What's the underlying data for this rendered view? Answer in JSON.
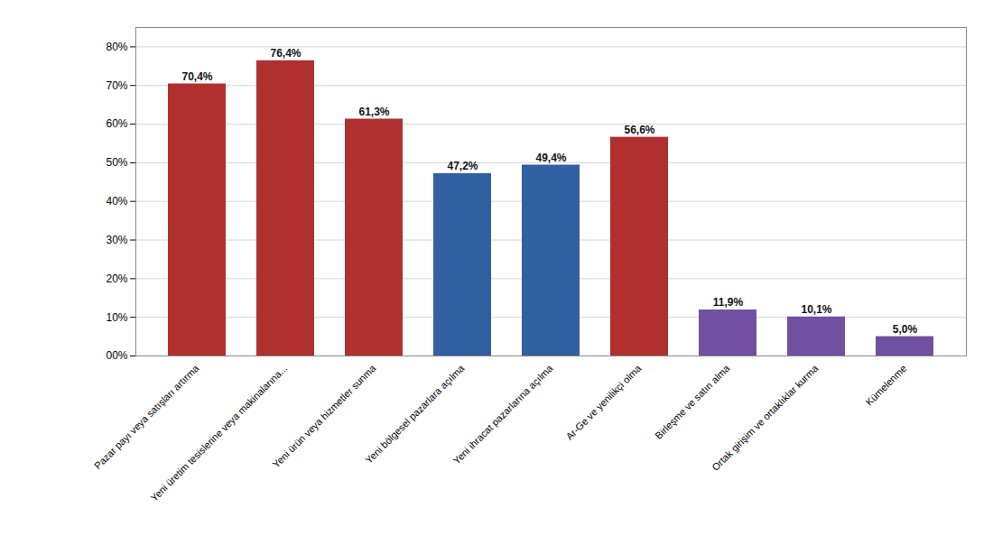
{
  "chart_data": {
    "type": "bar",
    "categories": [
      "Pazar payı veya satışları artırma",
      "Yeni üretim tesislerine veya makinalarına...",
      "Yeni ürün veya hizmetler sunma",
      "Yeni bölgesel pazarlara açılma",
      "Yeni ihracat pazarlarına açılma",
      "Ar-Ge ve yenilikçi olma",
      "Birleşme ve satın alma",
      "Ortak girişim ve ortaklıklar kurma",
      "Kümelenme"
    ],
    "values": [
      70.4,
      76.4,
      61.3,
      47.2,
      49.4,
      56.6,
      11.9,
      10.1,
      5.0
    ],
    "value_labels": [
      "70,4%",
      "76,4%",
      "61,3%",
      "47,2%",
      "49,4%",
      "56,6%",
      "11,9%",
      "10,1%",
      "5,0%"
    ],
    "colors": [
      "#b03030",
      "#b03030",
      "#b03030",
      "#3060a0",
      "#3060a0",
      "#b03030",
      "#7050a0",
      "#7050a0",
      "#7050a0"
    ],
    "ylim": [
      0,
      85
    ],
    "yticks": [
      {
        "value": 0,
        "label": "00%"
      },
      {
        "value": 10,
        "label": "10%"
      },
      {
        "value": 20,
        "label": "20%"
      },
      {
        "value": 30,
        "label": "30%"
      },
      {
        "value": 40,
        "label": "40%"
      },
      {
        "value": 50,
        "label": "50%"
      },
      {
        "value": 60,
        "label": "60%"
      },
      {
        "value": 70,
        "label": "70%"
      },
      {
        "value": 80,
        "label": "80%"
      }
    ],
    "grid": true,
    "data_labels": true
  }
}
